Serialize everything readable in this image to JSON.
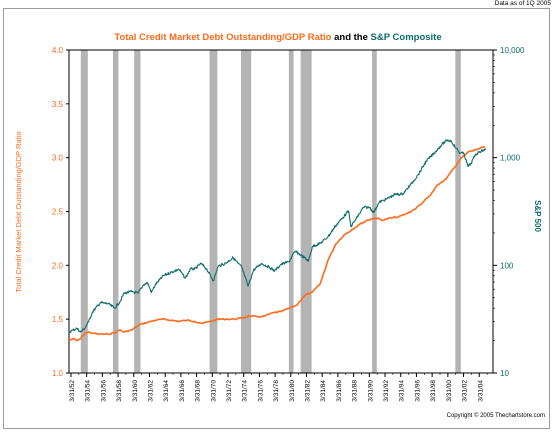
{
  "header": {
    "date_note": "Data as of 1Q 2005"
  },
  "footer": {
    "copyright": "Copyright © 2005 Thechartstore.com"
  },
  "chart_data": {
    "type": "line",
    "title_part1": "Total Credit Market Debt Outstanding/GDP Ratio",
    "title_and": " and the ",
    "title_part2": "S&P Composite",
    "ylabel_left": "Total Credit Market Debt Outstanding/GDP Ratio",
    "ylabel_right": "S&P 500",
    "left_axis": {
      "min": 1.0,
      "max": 4.0,
      "ticks": [
        "1.0",
        "1.5",
        "2.0",
        "2.5",
        "3.0",
        "3.5",
        "4.0"
      ]
    },
    "right_axis": {
      "scale": "log",
      "min": 10,
      "max": 10000,
      "ticks": [
        "10",
        "100",
        "1,000",
        "10,000"
      ]
    },
    "x_range": [
      1952,
      2006
    ],
    "x_tick_labels": [
      "3/31/52",
      "3/31/54",
      "3/31/56",
      "3/31/58",
      "3/31/60",
      "3/31/62",
      "3/31/64",
      "3/31/66",
      "3/31/68",
      "3/31/70",
      "3/31/72",
      "3/31/74",
      "3/31/76",
      "3/31/78",
      "3/31/80",
      "3/31/82",
      "3/31/84",
      "3/31/86",
      "3/31/88",
      "3/31/90",
      "3/31/92",
      "3/31/94",
      "3/31/96",
      "3/31/98",
      "3/31/00",
      "3/31/02",
      "3/31/04"
    ],
    "recessions": [
      [
        1953.5,
        1954.4
      ],
      [
        1957.6,
        1958.3
      ],
      [
        1960.3,
        1961.1
      ],
      [
        1969.9,
        1970.9
      ],
      [
        1973.9,
        1975.2
      ],
      [
        1980.0,
        1980.6
      ],
      [
        1981.5,
        1982.9
      ],
      [
        1990.6,
        1991.2
      ],
      [
        2001.2,
        2001.9
      ]
    ],
    "series": [
      {
        "name": "Total Credit Market Debt Outstanding/GDP Ratio",
        "axis": "left",
        "color": "#ff6a1a",
        "points": [
          [
            1952.0,
            1.3
          ],
          [
            1952.5,
            1.32
          ],
          [
            1953.0,
            1.3
          ],
          [
            1953.5,
            1.32
          ],
          [
            1954.0,
            1.37
          ],
          [
            1954.5,
            1.38
          ],
          [
            1955.0,
            1.37
          ],
          [
            1956.0,
            1.36
          ],
          [
            1957.0,
            1.36
          ],
          [
            1958.0,
            1.38
          ],
          [
            1958.5,
            1.4
          ],
          [
            1959.0,
            1.38
          ],
          [
            1960.0,
            1.4
          ],
          [
            1961.0,
            1.45
          ],
          [
            1962.0,
            1.47
          ],
          [
            1963.0,
            1.49
          ],
          [
            1964.0,
            1.5
          ],
          [
            1965.0,
            1.49
          ],
          [
            1966.0,
            1.48
          ],
          [
            1967.0,
            1.49
          ],
          [
            1968.0,
            1.48
          ],
          [
            1969.0,
            1.46
          ],
          [
            1970.0,
            1.48
          ],
          [
            1971.0,
            1.5
          ],
          [
            1972.0,
            1.5
          ],
          [
            1973.0,
            1.5
          ],
          [
            1974.0,
            1.51
          ],
          [
            1975.0,
            1.53
          ],
          [
            1976.0,
            1.52
          ],
          [
            1977.0,
            1.53
          ],
          [
            1978.0,
            1.56
          ],
          [
            1979.0,
            1.57
          ],
          [
            1980.0,
            1.6
          ],
          [
            1981.0,
            1.63
          ],
          [
            1982.0,
            1.72
          ],
          [
            1983.0,
            1.75
          ],
          [
            1984.0,
            1.83
          ],
          [
            1985.0,
            2.05
          ],
          [
            1986.0,
            2.2
          ],
          [
            1987.0,
            2.28
          ],
          [
            1988.0,
            2.33
          ],
          [
            1989.0,
            2.38
          ],
          [
            1990.0,
            2.42
          ],
          [
            1991.0,
            2.44
          ],
          [
            1992.0,
            2.42
          ],
          [
            1993.0,
            2.44
          ],
          [
            1994.0,
            2.45
          ],
          [
            1995.0,
            2.48
          ],
          [
            1996.0,
            2.52
          ],
          [
            1997.0,
            2.58
          ],
          [
            1998.0,
            2.65
          ],
          [
            1999.0,
            2.75
          ],
          [
            2000.0,
            2.8
          ],
          [
            2001.0,
            2.9
          ],
          [
            2002.0,
            3.0
          ],
          [
            2003.0,
            3.06
          ],
          [
            2004.0,
            3.08
          ],
          [
            2005.0,
            3.1
          ]
        ]
      },
      {
        "name": "S&P Composite",
        "axis": "right",
        "color": "#0e6b6b",
        "points": [
          [
            1952.0,
            24
          ],
          [
            1952.5,
            25
          ],
          [
            1953.0,
            26
          ],
          [
            1953.5,
            24
          ],
          [
            1954.0,
            26
          ],
          [
            1954.5,
            30
          ],
          [
            1955.0,
            37
          ],
          [
            1956.0,
            45
          ],
          [
            1957.0,
            44
          ],
          [
            1957.8,
            40
          ],
          [
            1958.5,
            46
          ],
          [
            1959.0,
            55
          ],
          [
            1960.0,
            57
          ],
          [
            1960.8,
            55
          ],
          [
            1961.5,
            66
          ],
          [
            1962.0,
            69
          ],
          [
            1962.5,
            56
          ],
          [
            1963.0,
            66
          ],
          [
            1964.0,
            80
          ],
          [
            1965.0,
            86
          ],
          [
            1966.0,
            92
          ],
          [
            1966.8,
            76
          ],
          [
            1967.5,
            93
          ],
          [
            1968.0,
            92
          ],
          [
            1968.8,
            104
          ],
          [
            1969.5,
            93
          ],
          [
            1970.4,
            72
          ],
          [
            1971.0,
            98
          ],
          [
            1972.0,
            105
          ],
          [
            1972.9,
            118
          ],
          [
            1973.5,
            105
          ],
          [
            1974.0,
            96
          ],
          [
            1974.8,
            64
          ],
          [
            1975.5,
            90
          ],
          [
            1976.5,
            104
          ],
          [
            1977.5,
            96
          ],
          [
            1978.2,
            89
          ],
          [
            1979.0,
            102
          ],
          [
            1980.0,
            108
          ],
          [
            1980.8,
            135
          ],
          [
            1981.5,
            125
          ],
          [
            1982.5,
            110
          ],
          [
            1983.0,
            150
          ],
          [
            1984.0,
            160
          ],
          [
            1985.0,
            185
          ],
          [
            1986.0,
            235
          ],
          [
            1987.6,
            320
          ],
          [
            1987.9,
            230
          ],
          [
            1988.5,
            265
          ],
          [
            1989.5,
            345
          ],
          [
            1990.3,
            345
          ],
          [
            1990.8,
            310
          ],
          [
            1991.5,
            385
          ],
          [
            1992.5,
            415
          ],
          [
            1993.5,
            455
          ],
          [
            1994.5,
            460
          ],
          [
            1995.5,
            560
          ],
          [
            1996.5,
            700
          ],
          [
            1997.5,
            930
          ],
          [
            1998.5,
            1100
          ],
          [
            1999.5,
            1330
          ],
          [
            2000.2,
            1460
          ],
          [
            2000.7,
            1420
          ],
          [
            2001.3,
            1220
          ],
          [
            2001.8,
            1100
          ],
          [
            2002.3,
            1100
          ],
          [
            2002.8,
            830
          ],
          [
            2003.2,
            880
          ],
          [
            2003.7,
            1050
          ],
          [
            2004.2,
            1130
          ],
          [
            2004.8,
            1180
          ],
          [
            2005.1,
            1190
          ]
        ]
      }
    ]
  }
}
